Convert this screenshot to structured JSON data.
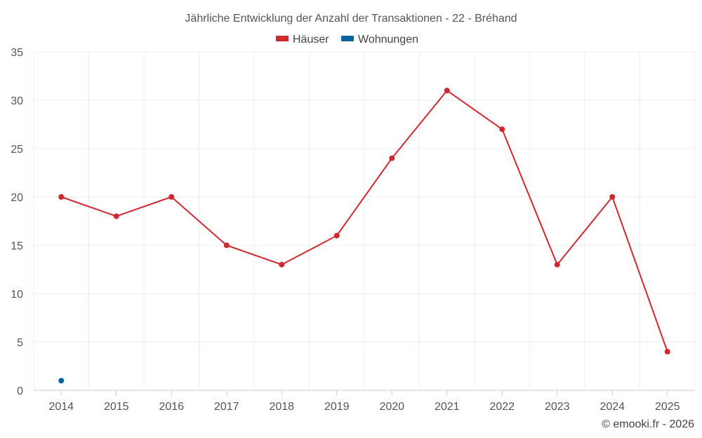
{
  "chart_data": {
    "type": "line",
    "title": "Jährliche Entwicklung der Anzahl der Transaktionen - 22 - Bréhand",
    "xlabel": "",
    "ylabel": "",
    "categories": [
      "2014",
      "2015",
      "2016",
      "2017",
      "2018",
      "2019",
      "2020",
      "2021",
      "2022",
      "2023",
      "2024",
      "2025"
    ],
    "ylim": [
      0,
      35
    ],
    "yticks": [
      0,
      5,
      10,
      15,
      20,
      25,
      30,
      35
    ],
    "grid": true,
    "legend_position": "top-center",
    "series": [
      {
        "name": "Häuser",
        "color": "#d0282e",
        "values": [
          20,
          18,
          20,
          15,
          13,
          16,
          24,
          31,
          27,
          13,
          20,
          4
        ]
      },
      {
        "name": "Wohnungen",
        "color": "#0a64a0",
        "values": [
          1,
          null,
          null,
          null,
          null,
          null,
          null,
          null,
          null,
          null,
          null,
          null
        ]
      }
    ]
  },
  "credit": "© emooki.fr - 2026"
}
